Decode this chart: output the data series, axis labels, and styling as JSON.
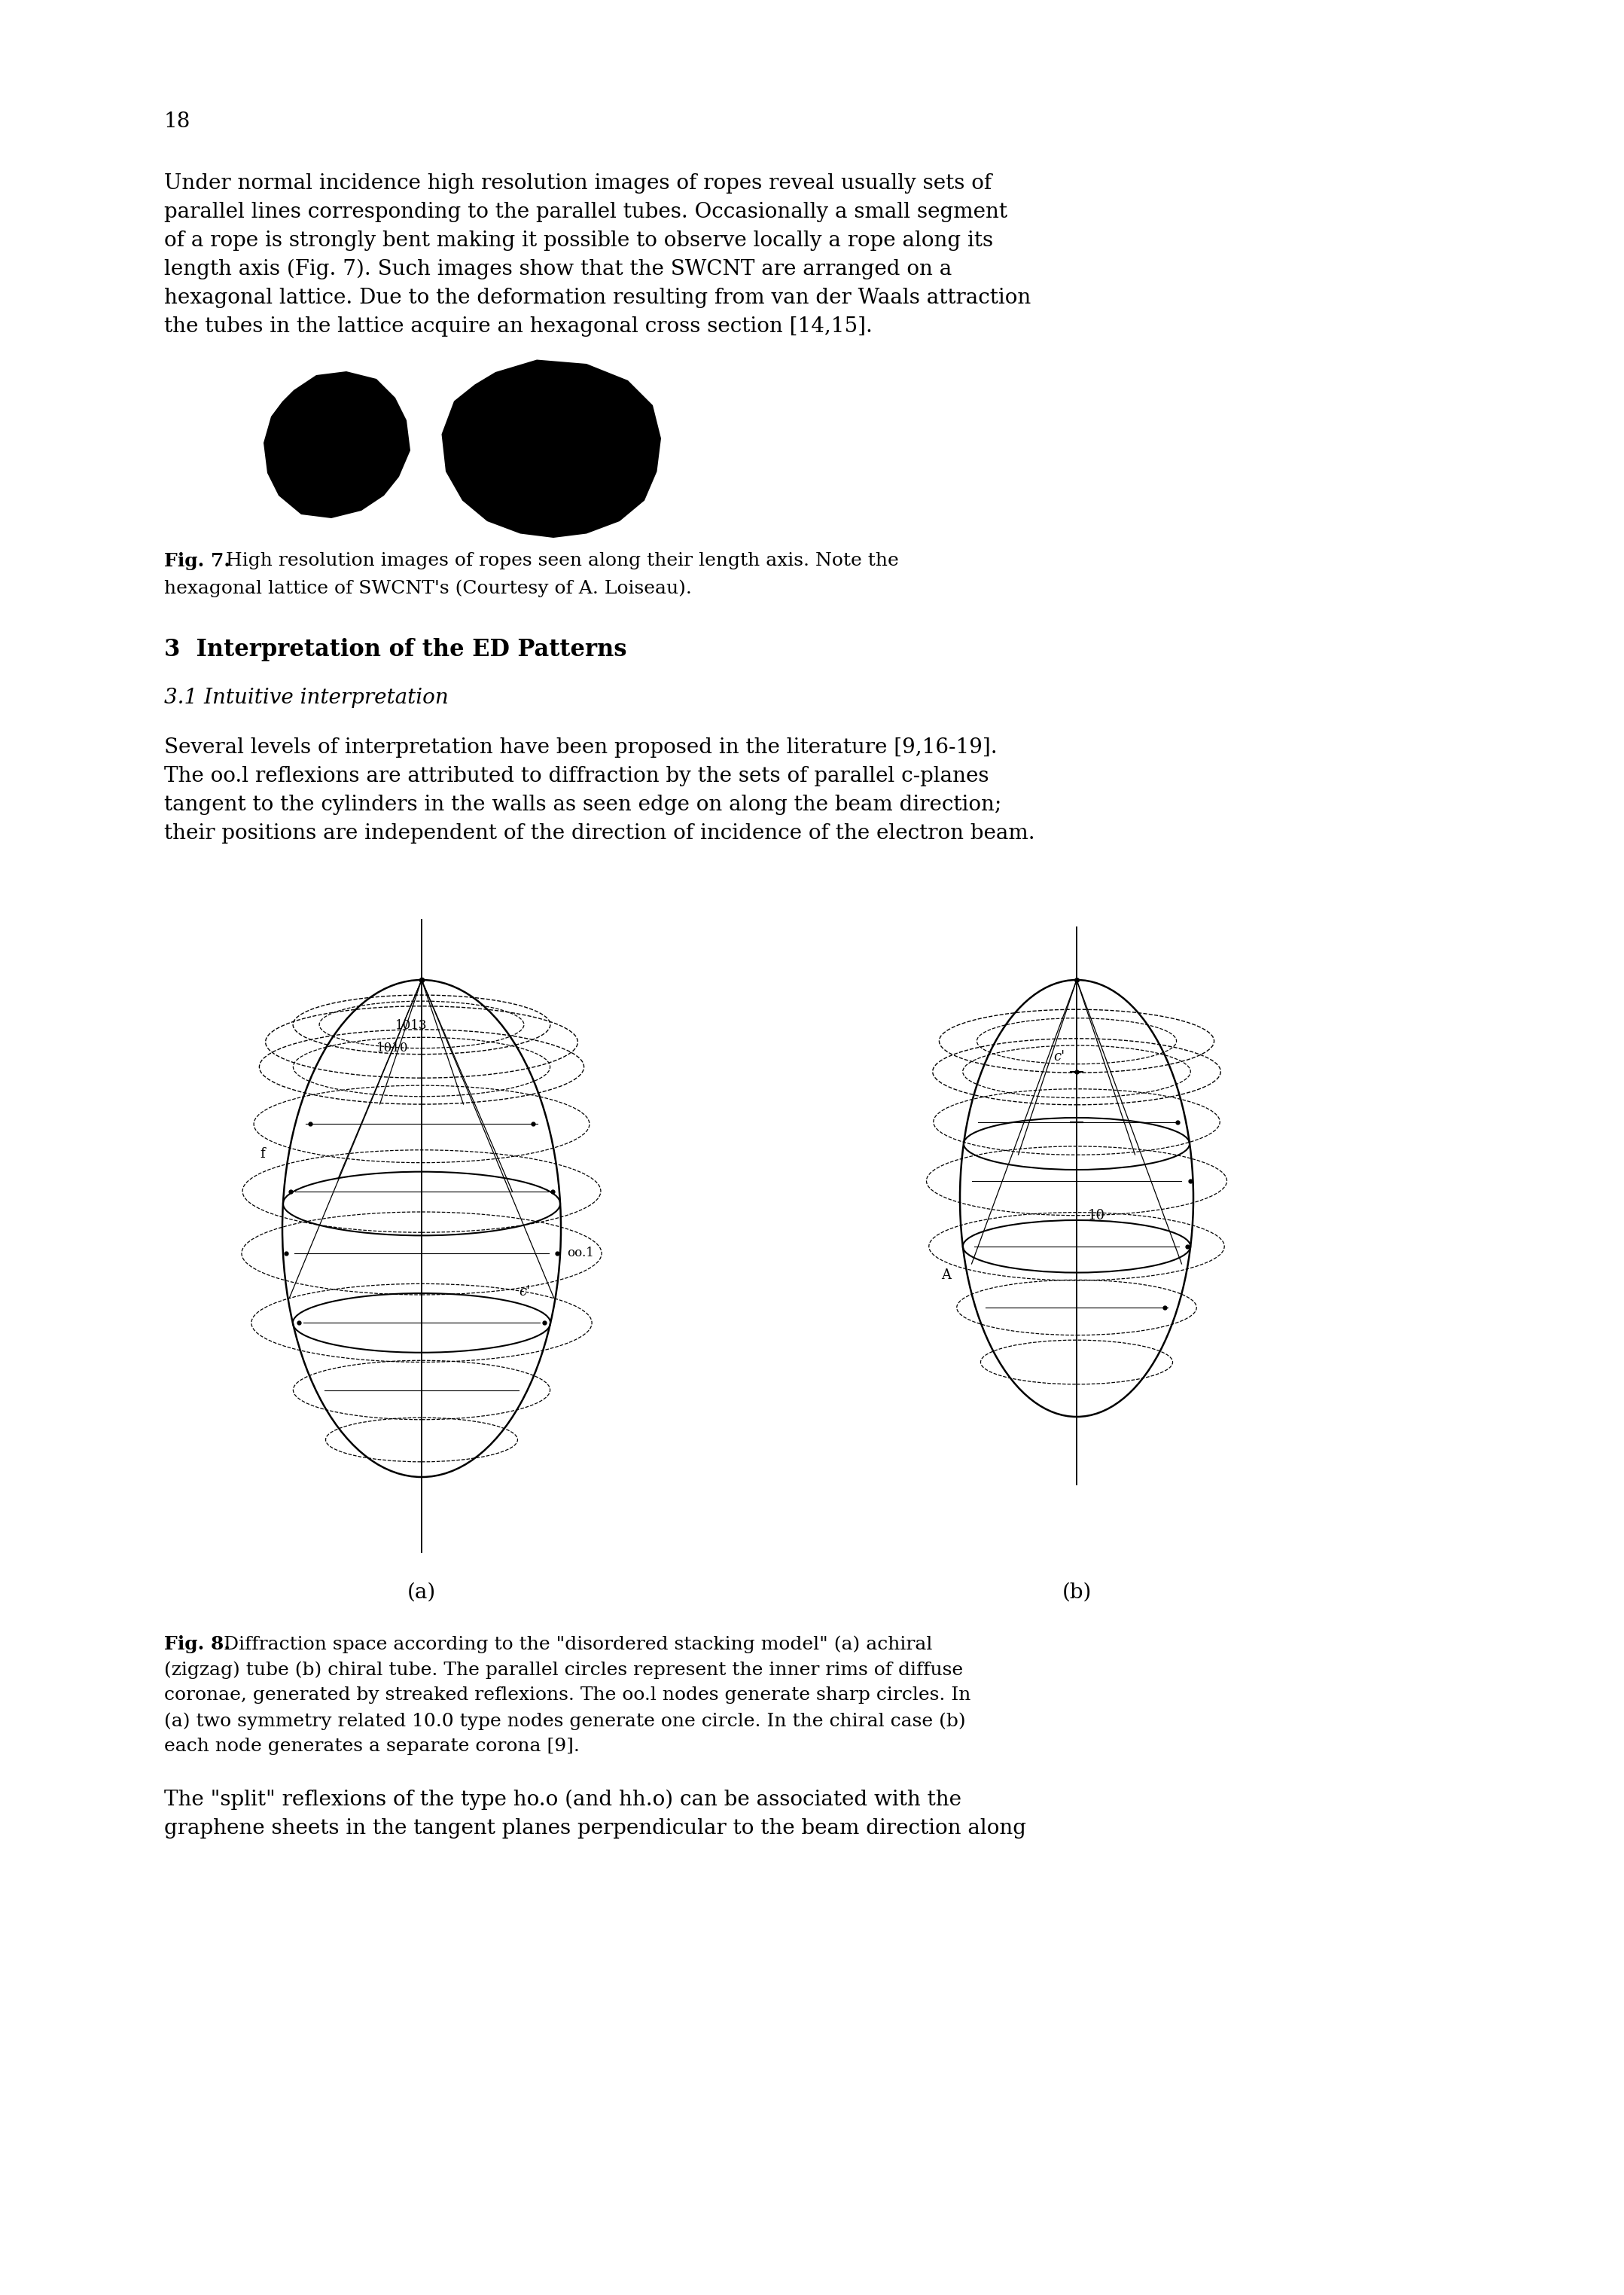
{
  "page_number": "18",
  "background_color": "#ffffff",
  "text_color": "#000000",
  "para1_lines": [
    "Under normal incidence high resolution images of ropes reveal usually sets of",
    "parallel lines corresponding to the parallel tubes. Occasionally a small segment",
    "of a rope is strongly bent making it possible to observe locally a rope along its",
    "length axis (Fig. 7). Such images show that the SWCNT are arranged on a",
    "hexagonal lattice. Due to the deformation resulting from van der Waals attraction",
    "the tubes in the lattice acquire an hexagonal cross section [14,15]."
  ],
  "section_header": "3  Interpretation of the ED Patterns",
  "subsection_header": "3.1 Intuitive interpretation",
  "para2_lines": [
    "Several levels of interpretation have been proposed in the literature [9,16-19].",
    "The oo.l reflexions are attributed to diffraction by the sets of parallel c-planes",
    "tangent to the cylinders in the walls as seen edge on along the beam direction;",
    "their positions are independent of the direction of incidence of the electron beam."
  ],
  "fig7_bold": "Fig. 7.",
  "fig7_rest": " High resolution images of ropes seen along their length axis. Note the",
  "fig7_line2": "hexagonal lattice of SWCNT's (Courtesy of A. Loiseau).",
  "fig8_bold": "Fig. 8.",
  "fig8_lines": [
    " Diffraction space according to the \"disordered stacking model\" (a) achiral",
    "(zigzag) tube (b) chiral tube. The parallel circles represent the inner rims of diffuse",
    "coronae, generated by streaked reflexions. The oo.l nodes generate sharp circles. In",
    "(a) two symmetry related 10.0 type nodes generate one circle. In the chiral case (b)",
    "each node generates a separate corona [9]."
  ],
  "para3_lines": [
    "The \"split\" reflexions of the type ho.o (and hh.o) can be associated with the",
    "graphene sheets in the tangent planes perpendicular to the beam direction along"
  ],
  "fig8_label_a": "(a)",
  "fig8_label_b": "(b)"
}
